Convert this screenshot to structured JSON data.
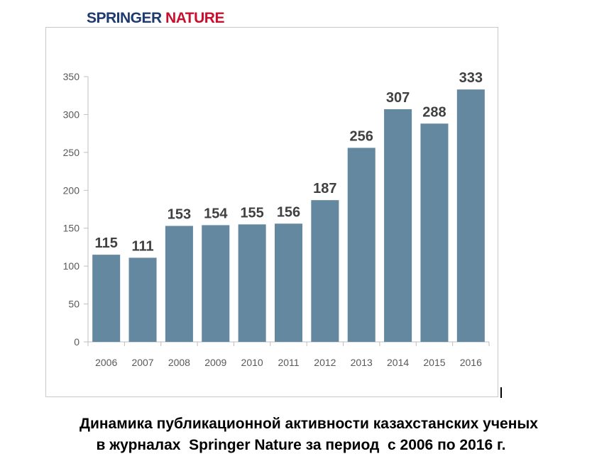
{
  "logo": {
    "part1": "SPRINGER ",
    "part2": "NATURE"
  },
  "caption": {
    "line1": "Динамика публикационной активности казахстанских ученых",
    "line2": "в журналах  Springer Nature за период  с 2006 по 2016 г."
  },
  "colors": {
    "bar": "#63889f",
    "axis": "#bfbfbf",
    "tick_text": "#595959",
    "label_text": "#404040"
  },
  "chart_data": {
    "type": "bar",
    "categories": [
      "2006",
      "2007",
      "2008",
      "2009",
      "2010",
      "2011",
      "2012",
      "2013",
      "2014",
      "2015",
      "2016"
    ],
    "values": [
      115,
      111,
      153,
      154,
      155,
      156,
      187,
      256,
      307,
      288,
      333
    ],
    "ylim": [
      0,
      350
    ],
    "yticks": [
      0,
      50,
      100,
      150,
      200,
      250,
      300,
      350
    ],
    "grid": false,
    "legend": "none"
  }
}
